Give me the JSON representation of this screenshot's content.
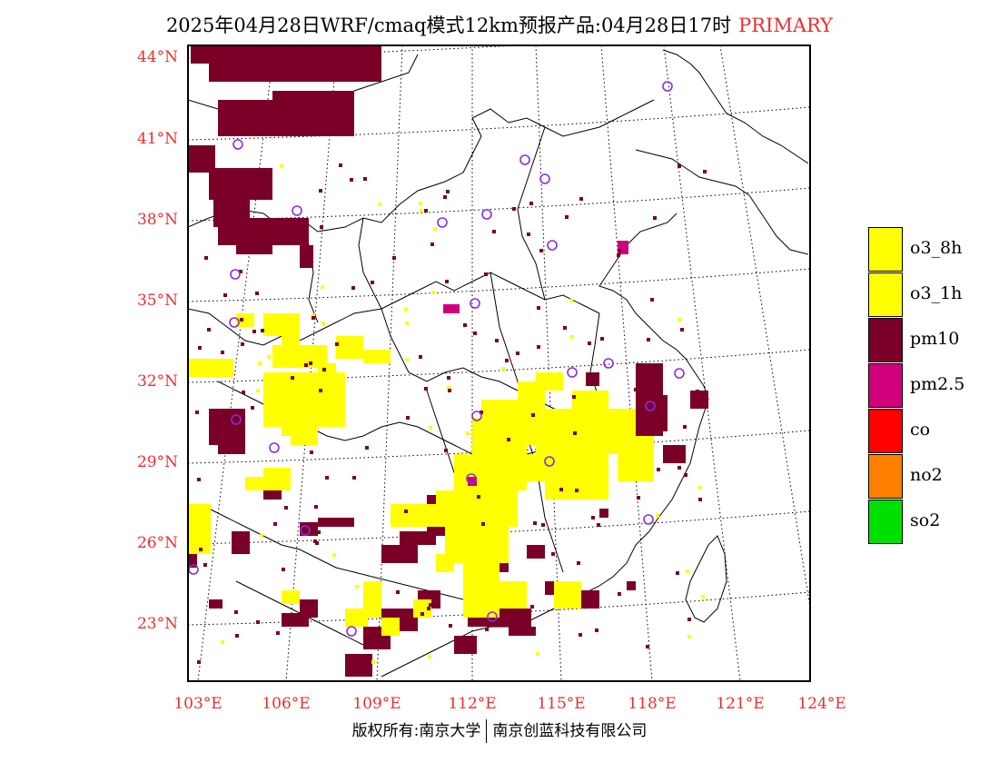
{
  "title": {
    "main": "2025年04月28日WRF/cmaq模式12km预报产品:04月28日17时",
    "tag": "PRIMARY"
  },
  "colors": {
    "o3_8h": "#ffff00",
    "o3_1h": "#ffff00",
    "pm10": "#7a0028",
    "pm2_5": "#d0007a",
    "co": "#ff0000",
    "no2": "#ff7f00",
    "so2": "#00e000",
    "station": "#8a2be2",
    "tick": "#e83030"
  },
  "lat_labels": [
    "44°N",
    "41°N",
    "38°N",
    "35°N",
    "32°N",
    "29°N",
    "26°N",
    "23°N"
  ],
  "lon_labels": [
    "103°E",
    "106°E",
    "109°E",
    "112°E",
    "115°E",
    "118°E",
    "121°E",
    "124°E"
  ],
  "legend": [
    {
      "key": "o3_8h",
      "label": "o3_8h"
    },
    {
      "key": "o3_1h",
      "label": "o3_1h"
    },
    {
      "key": "pm10",
      "label": "pm10"
    },
    {
      "key": "pm2_5",
      "label": "pm2.5"
    },
    {
      "key": "co",
      "label": "co"
    },
    {
      "key": "no2",
      "label": "no2"
    },
    {
      "key": "so2",
      "label": "so2"
    }
  ],
  "copyright": {
    "left": "版权所有:南京大学",
    "right": "南京创蓝科技有限公司"
  }
}
